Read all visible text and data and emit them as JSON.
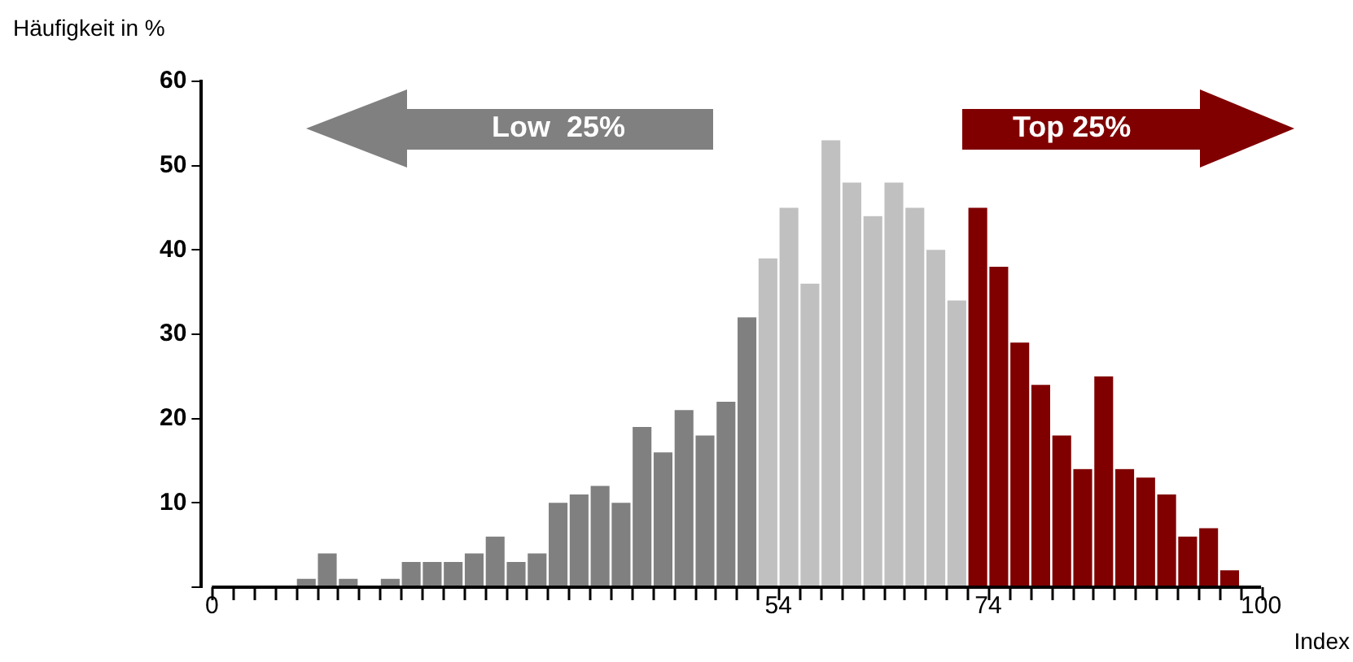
{
  "chart_data": {
    "type": "histogram",
    "ylabel": "Häufigkeit in %",
    "xlabel": "Index",
    "bins": [
      0,
      2,
      4,
      6,
      8,
      10,
      12,
      14,
      16,
      18,
      20,
      22,
      24,
      26,
      28,
      30,
      32,
      34,
      36,
      38,
      40,
      42,
      44,
      46,
      48,
      50,
      52,
      54,
      56,
      58,
      60,
      62,
      64,
      66,
      68,
      70,
      72,
      74,
      76,
      78,
      80,
      82,
      84,
      86,
      88,
      90,
      92,
      94,
      96,
      98,
      100
    ],
    "values": [
      0,
      0,
      0,
      0,
      1,
      4,
      1,
      0,
      1,
      3,
      3,
      3,
      4,
      6,
      3,
      4,
      10,
      11,
      12,
      10,
      19,
      16,
      21,
      18,
      22,
      32,
      39,
      45,
      36,
      53,
      48,
      44,
      48,
      45,
      40,
      34,
      45,
      38,
      29,
      24,
      18,
      14,
      25,
      14,
      13,
      11,
      6,
      7,
      2,
      0
    ],
    "colors": [
      "#808080",
      "#808080",
      "#808080",
      "#808080",
      "#808080",
      "#808080",
      "#808080",
      "#808080",
      "#808080",
      "#808080",
      "#808080",
      "#808080",
      "#808080",
      "#808080",
      "#808080",
      "#808080",
      "#808080",
      "#808080",
      "#808080",
      "#808080",
      "#808080",
      "#808080",
      "#808080",
      "#808080",
      "#808080",
      "#808080",
      "#c0c0c0",
      "#c0c0c0",
      "#c0c0c0",
      "#c0c0c0",
      "#c0c0c0",
      "#c0c0c0",
      "#c0c0c0",
      "#c0c0c0",
      "#c0c0c0",
      "#c0c0c0",
      "#800000",
      "#800000",
      "#800000",
      "#800000",
      "#800000",
      "#800000",
      "#800000",
      "#800000",
      "#800000",
      "#800000",
      "#800000",
      "#800000",
      "#800000",
      "#800000"
    ],
    "xlim": [
      0,
      100
    ],
    "xticks": [
      0,
      {
        "value": 2,
        "label": null
      },
      {
        "value": 4,
        "label": null
      },
      {
        "value": 6,
        "label": null
      },
      {
        "value": 8,
        "label": null
      },
      {
        "value": 10,
        "label": null
      },
      {
        "value": 12,
        "label": null
      },
      {
        "value": 14,
        "label": null
      },
      {
        "value": 16,
        "label": null
      },
      {
        "value": 18,
        "label": null
      },
      {
        "value": 20,
        "label": null
      },
      {
        "value": 22,
        "label": null
      },
      {
        "value": 24,
        "label": null
      },
      {
        "value": 26,
        "label": null
      },
      {
        "value": 28,
        "label": null
      },
      {
        "value": 30,
        "label": null
      },
      {
        "value": 32,
        "label": null
      },
      {
        "value": 34,
        "label": null
      },
      {
        "value": 36,
        "label": null
      },
      {
        "value": 38,
        "label": null
      },
      {
        "value": 40,
        "label": null
      },
      {
        "value": 42,
        "label": null
      },
      {
        "value": 44,
        "label": null
      },
      {
        "value": 46,
        "label": null
      },
      {
        "value": 48,
        "label": null
      },
      {
        "value": 50,
        "label": null
      },
      {
        "value": 52,
        "label": null
      },
      {
        "value": 54,
        "label": "54"
      },
      {
        "value": 56,
        "label": null
      },
      {
        "value": 58,
        "label": null
      },
      {
        "value": 60,
        "label": null
      },
      {
        "value": 62,
        "label": null
      },
      {
        "value": 64,
        "label": null
      },
      {
        "value": 66,
        "label": null
      },
      {
        "value": 68,
        "label": null
      },
      {
        "value": 70,
        "label": null
      },
      {
        "value": 72,
        "label": null
      },
      {
        "value": 74,
        "label": "74"
      },
      {
        "value": 76,
        "label": null
      },
      {
        "value": 78,
        "label": null
      },
      {
        "value": 80,
        "label": null
      },
      {
        "value": 82,
        "label": null
      },
      {
        "value": 84,
        "label": null
      },
      {
        "value": 86,
        "label": null
      },
      {
        "value": 88,
        "label": null
      },
      {
        "value": 90,
        "label": null
      },
      {
        "value": 92,
        "label": null
      },
      {
        "value": 94,
        "label": null
      },
      {
        "value": 96,
        "label": null
      },
      {
        "value": 98,
        "label": null
      },
      100
    ],
    "ylim": [
      0,
      60
    ],
    "yticks": [
      {
        "value": 0,
        "label": null
      },
      10,
      20,
      30,
      40,
      50,
      60
    ],
    "grid": false,
    "legend": false,
    "annotations": [
      "Low  25%",
      "Top 25%"
    ]
  }
}
